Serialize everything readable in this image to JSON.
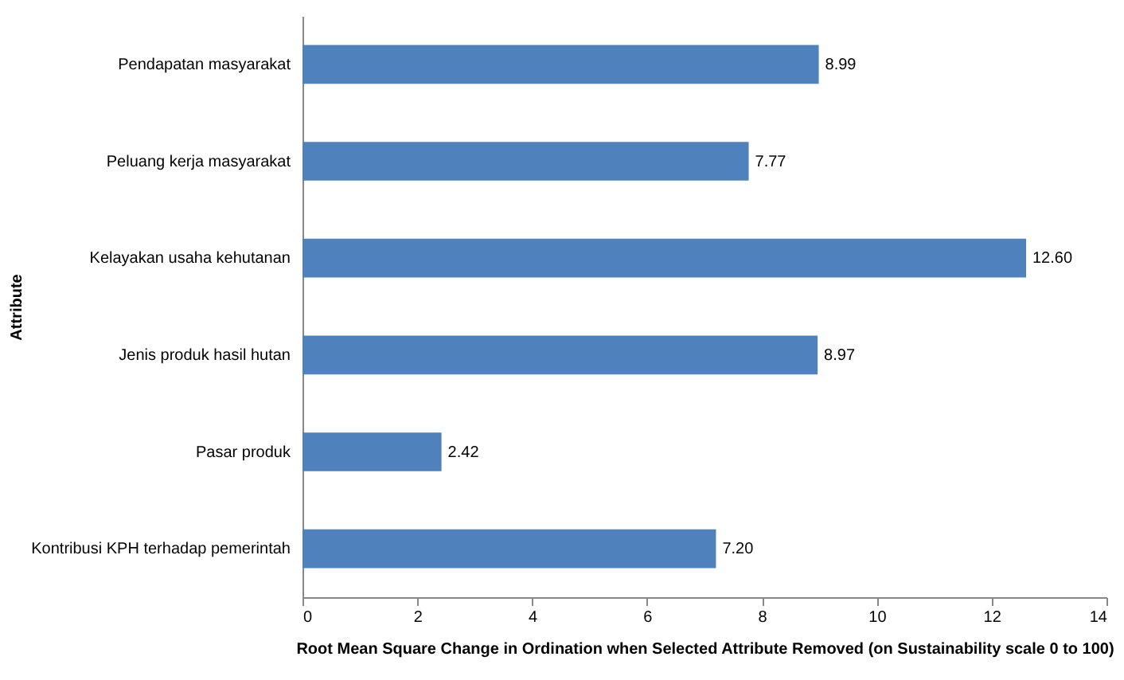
{
  "chart_data": {
    "type": "bar",
    "orientation": "horizontal",
    "xlabel": "Root Mean Square Change in Ordination when Selected Attribute Removed (on Sustainability scale 0 to 100)",
    "ylabel": "Attribute",
    "categories": [
      "Pendapatan masyarakat",
      "Peluang kerja masyarakat",
      "Kelayakan usaha kehutanan",
      "Jenis produk hasil hutan",
      "Pasar produk",
      "Kontribusi KPH terhadap pemerintah"
    ],
    "values": [
      8.99,
      7.77,
      12.6,
      8.97,
      2.42,
      7.2
    ],
    "value_labels": [
      "8.99",
      "7.77",
      "12.60",
      "8.97",
      "2.42",
      "7.20"
    ],
    "color": "#4f81bd",
    "xlim": [
      0,
      14
    ],
    "xticks": [
      0,
      2,
      4,
      6,
      8,
      10,
      12,
      14
    ],
    "grid": false
  }
}
